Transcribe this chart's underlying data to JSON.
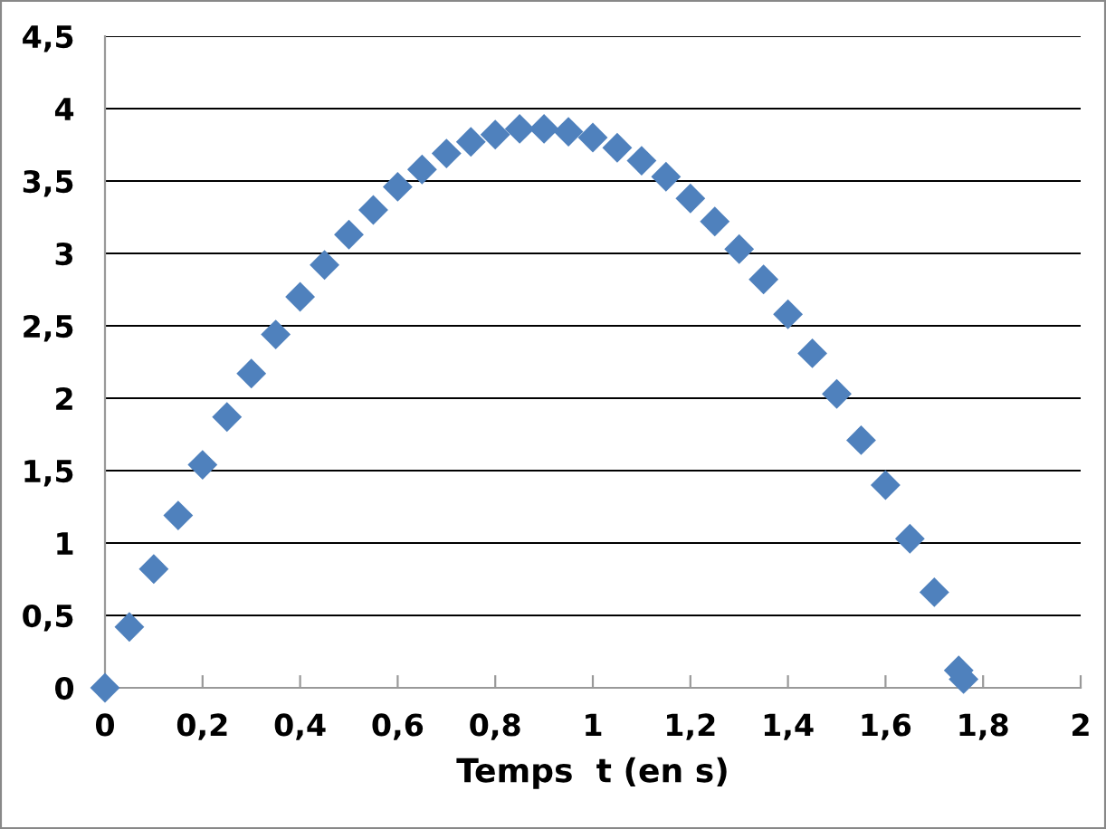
{
  "chart_data": {
    "type": "scatter",
    "xlabel": "Temps  t (en s)",
    "x": [
      0,
      0.05,
      0.1,
      0.15,
      0.2,
      0.25,
      0.3,
      0.35,
      0.4,
      0.45,
      0.5,
      0.55,
      0.6,
      0.65,
      0.7,
      0.75,
      0.8,
      0.85,
      0.9,
      0.95,
      1.0,
      1.05,
      1.1,
      1.15,
      1.2,
      1.25,
      1.3,
      1.35,
      1.4,
      1.45,
      1.5,
      1.55,
      1.6,
      1.65,
      1.7,
      1.75,
      1.76
    ],
    "series": [
      {
        "color": "#4f81bd",
        "values": [
          0,
          0.42,
          0.82,
          1.19,
          1.54,
          1.87,
          2.17,
          2.44,
          2.7,
          2.92,
          3.13,
          3.3,
          3.46,
          3.58,
          3.69,
          3.77,
          3.82,
          3.86,
          3.86,
          3.84,
          3.8,
          3.73,
          3.64,
          3.53,
          3.38,
          3.22,
          3.03,
          2.82,
          2.58,
          2.31,
          2.03,
          1.71,
          1.4,
          1.03,
          0.66,
          0.12,
          0.06
        ]
      }
    ],
    "marker": "diamond",
    "xlim": [
      0,
      2
    ],
    "xticks": [
      {
        "value": 0,
        "label": "0"
      },
      {
        "value": 0.2,
        "label": "0,2"
      },
      {
        "value": 0.4,
        "label": "0,4"
      },
      {
        "value": 0.6,
        "label": "0,6"
      },
      {
        "value": 0.8,
        "label": "0,8"
      },
      {
        "value": 1,
        "label": "1"
      },
      {
        "value": 1.2,
        "label": "1,2"
      },
      {
        "value": 1.4,
        "label": "1,4"
      },
      {
        "value": 1.6,
        "label": "1,6"
      },
      {
        "value": 1.8,
        "label": "1,8"
      },
      {
        "value": 2,
        "label": "2"
      }
    ],
    "ylim": [
      0,
      4.5
    ],
    "yticks": [
      {
        "value": 0,
        "label": "0"
      },
      {
        "value": 0.5,
        "label": "0,5"
      },
      {
        "value": 1,
        "label": "1"
      },
      {
        "value": 1.5,
        "label": "1,5"
      },
      {
        "value": 2,
        "label": "2"
      },
      {
        "value": 2.5,
        "label": "2,5"
      },
      {
        "value": 3,
        "label": "3"
      },
      {
        "value": 3.5,
        "label": "3,5"
      },
      {
        "value": 4,
        "label": "4"
      },
      {
        "value": 4.5,
        "label": "4,5"
      }
    ],
    "grid": "y"
  }
}
